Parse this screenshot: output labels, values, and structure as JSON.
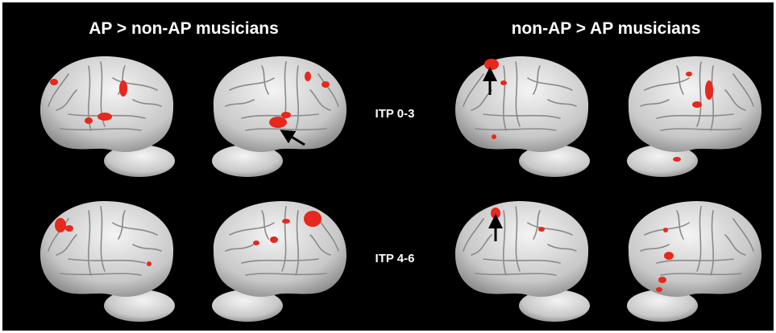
{
  "headers": [
    "AP > non-AP musicians",
    "non-AP > AP musicians"
  ],
  "rows": [
    {
      "label": "ITP 0-3"
    },
    {
      "label": "ITP 4-6"
    }
  ]
}
